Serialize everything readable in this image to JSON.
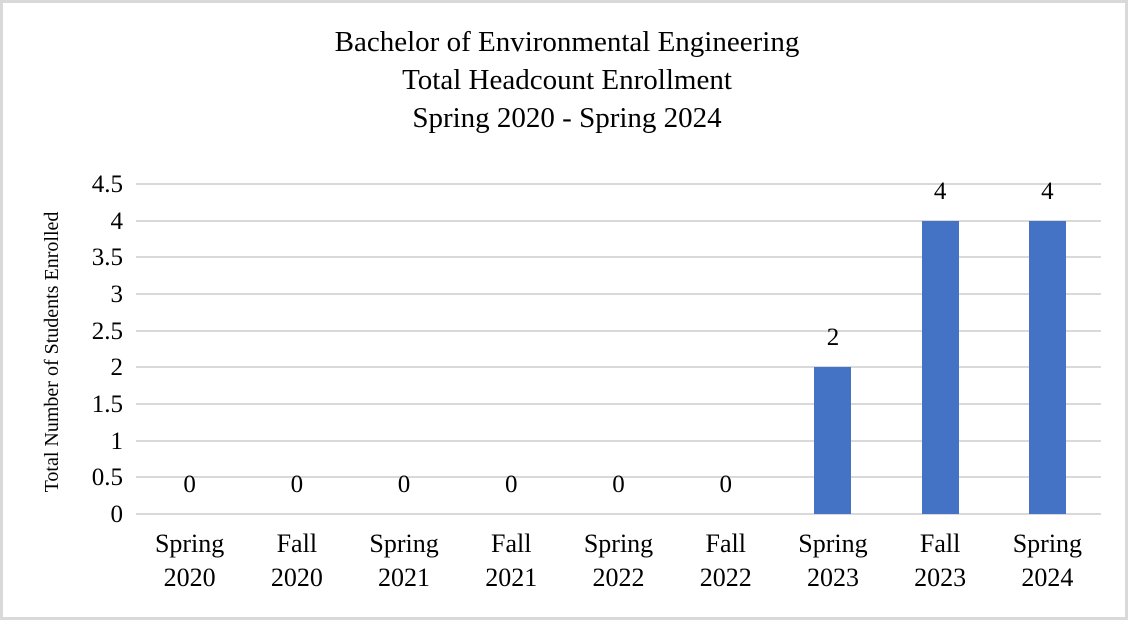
{
  "chart_data": {
    "type": "bar",
    "title": "Bachelor of Environmental Engineering\nTotal Headcount Enrollment\nSpring 2020 - Spring 2024",
    "xlabel": "",
    "ylabel": "Total Number of Students Enrolled",
    "categories": [
      "Spring 2020",
      "Fall 2020",
      "Spring 2021",
      "Fall 2021",
      "Spring 2022",
      "Fall 2022",
      "Spring 2023",
      "Fall 2023",
      "Spring 2024"
    ],
    "values": [
      0,
      0,
      0,
      0,
      0,
      0,
      2,
      4,
      4
    ],
    "data_labels": [
      "0",
      "0",
      "0",
      "0",
      "0",
      "0",
      "2",
      "4",
      "4"
    ],
    "y_ticks": [
      0,
      0.5,
      1,
      1.5,
      2,
      2.5,
      3,
      3.5,
      4,
      4.5
    ],
    "y_tick_labels": [
      "0",
      "0.5",
      "1",
      "1.5",
      "2",
      "2.5",
      "3",
      "3.5",
      "4",
      "4.5"
    ],
    "ylim": [
      0,
      4.5
    ],
    "grid": true,
    "legend": "none",
    "colors": {
      "bar": "#4472C4",
      "gridline": "#d9d9d9",
      "text": "#000000",
      "border": "#d9d9d9",
      "background": "#ffffff"
    }
  }
}
